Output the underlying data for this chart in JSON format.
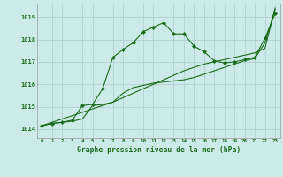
{
  "title": "Graphe pression niveau de la mer (hPa)",
  "background_color": "#cceae7",
  "grid_color": "#aacccc",
  "line_color": "#1a6b1a",
  "x_labels": [
    "0",
    "1",
    "2",
    "3",
    "4",
    "5",
    "6",
    "7",
    "8",
    "9",
    "10",
    "11",
    "12",
    "13",
    "14",
    "15",
    "16",
    "17",
    "18",
    "19",
    "20",
    "21",
    "22",
    "23"
  ],
  "ylim": [
    1013.6,
    1019.6
  ],
  "yticks": [
    1014,
    1015,
    1016,
    1017,
    1018,
    1019
  ],
  "series_trend": [
    1014.15,
    1014.3,
    1014.45,
    1014.6,
    1014.75,
    1014.9,
    1015.05,
    1015.2,
    1015.4,
    1015.6,
    1015.8,
    1016.0,
    1016.2,
    1016.4,
    1016.6,
    1016.75,
    1016.9,
    1017.0,
    1017.1,
    1017.2,
    1017.3,
    1017.4,
    1017.6,
    1019.4
  ],
  "series_smooth": [
    1014.15,
    1014.25,
    1014.3,
    1014.35,
    1014.45,
    1015.05,
    1015.1,
    1015.2,
    1015.6,
    1015.85,
    1015.95,
    1016.05,
    1016.1,
    1016.15,
    1016.2,
    1016.3,
    1016.45,
    1016.6,
    1016.75,
    1016.9,
    1017.05,
    1017.15,
    1017.85,
    1019.35
  ],
  "series_peak": [
    1014.15,
    1014.25,
    1014.3,
    1014.4,
    1015.05,
    1015.1,
    1015.8,
    1017.2,
    1017.55,
    1017.85,
    1018.35,
    1018.55,
    1018.75,
    1018.25,
    1018.25,
    1017.7,
    1017.45,
    1017.05,
    1016.95,
    1017.0,
    1017.1,
    1017.2,
    1018.05,
    1019.15
  ]
}
